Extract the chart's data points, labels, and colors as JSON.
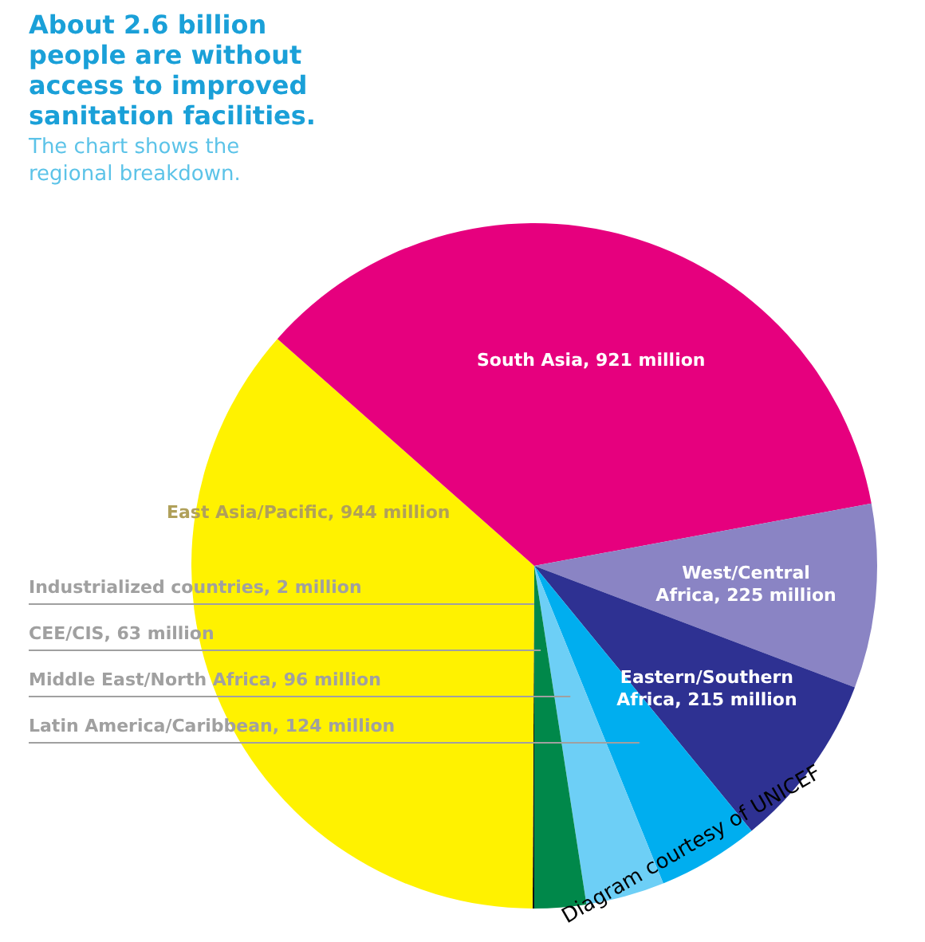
{
  "chart_data": {
    "type": "pie",
    "title": "About 2.6 billion people are without access to improved sanitation facilities.",
    "subtitle": "The chart shows the regional breakdown.",
    "categories": [
      "Industrialized countries",
      "East Asia/Pacific",
      "South Asia",
      "West/Central Africa",
      "Eastern/Southern Africa",
      "Latin America/Caribbean",
      "Middle East/North Africa",
      "CEE/CIS"
    ],
    "values": [
      2,
      944,
      921,
      225,
      215,
      124,
      96,
      63
    ],
    "value_labels": [
      "2 million",
      "944 million",
      "921 million",
      "225 million",
      "215 million",
      "124 million",
      "96 million",
      "63 million"
    ],
    "colors": [
      "#111111",
      "#fff200",
      "#e6007e",
      "#8a84c4",
      "#2e3192",
      "#00aeef",
      "#6dcff6",
      "#00884a"
    ],
    "annotations": [
      "Diagram courtesy of UNICEF"
    ]
  }
}
